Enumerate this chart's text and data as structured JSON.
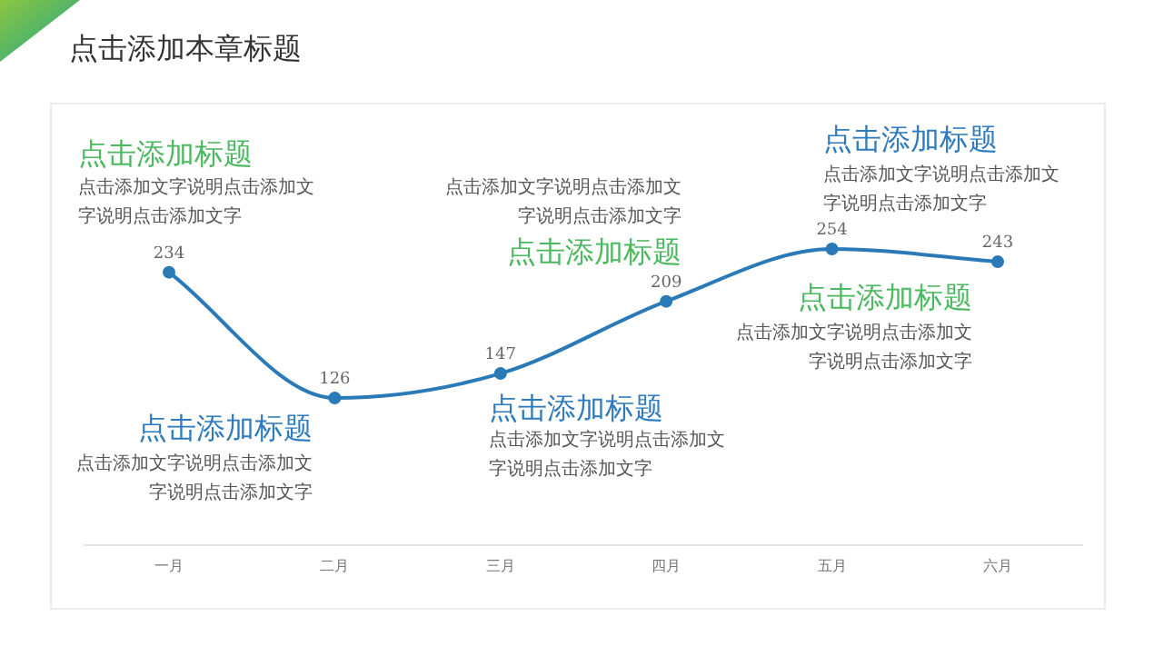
{
  "chart_data": {
    "type": "line",
    "title": "点击添加本章标题",
    "categories": [
      "一月",
      "二月",
      "三月",
      "四月",
      "五月",
      "六月"
    ],
    "series": [
      {
        "color": "#2a7ab8",
        "values": [
          234,
          126,
          147,
          209,
          254,
          243
        ]
      }
    ],
    "data_labels": true,
    "marker": "circle",
    "line_style": "solid",
    "annotations": [
      "点击添加标题",
      "点击添加文字说明点击添加文字说明点击添加文字",
      "点击添加文字说明点击添加文字说明点击添加文字",
      "点击添加标题",
      "点击添加标题",
      "点击添加文字说明点击添加文字说明点击添加文字",
      "点击添加标题",
      "点击添加文字说明点击添加文字说明点击添加文字",
      "点击添加标题",
      "点击添加文字说明点击添加文字说明点击添加文字",
      "点击添加标题",
      "点击添加文字说明点击添加文字说明点击添加文字"
    ]
  }
}
